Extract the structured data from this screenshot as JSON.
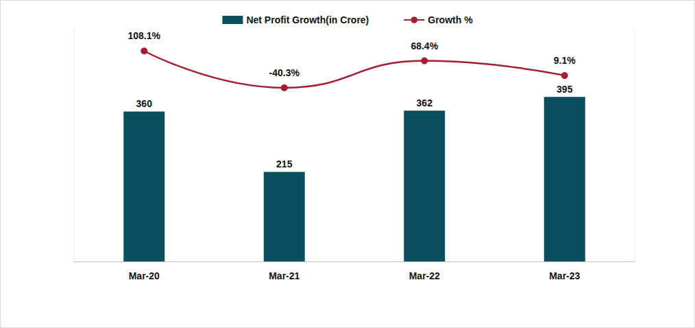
{
  "chart_data": {
    "type": "bar",
    "categories": [
      "Mar-20",
      "Mar-21",
      "Mar-22",
      "Mar-23"
    ],
    "series": [
      {
        "name": "Net Profit Growth(in Crore)",
        "type": "bar",
        "color": "#0b4f5f",
        "values": [
          360,
          215,
          362,
          395
        ]
      },
      {
        "name": "Growth %",
        "type": "line",
        "axis": "y2",
        "color": "#a51d33",
        "marker": "circle",
        "line_style": "smooth",
        "values": [
          108.1,
          -40.3,
          68.4,
          9.1
        ],
        "value_labels": [
          "108.1%",
          "-40.3%",
          "68.4%",
          "9.1%"
        ]
      }
    ],
    "ylim": [
      0,
      560
    ],
    "y2lim": [
      -740,
      200
    ],
    "data_labels": true,
    "legend": "top",
    "tick_labels": "x",
    "grid": false
  }
}
